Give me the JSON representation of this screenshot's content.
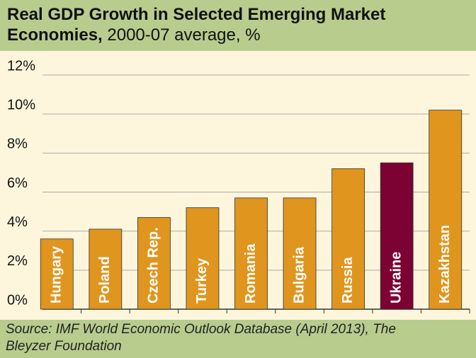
{
  "chart_data": {
    "type": "bar",
    "title": "Real GDP Growth in Selected Emerging Market Economies,",
    "subtitle": "2000-07 average, %",
    "source": "Source: IMF World Economic Outlook Database (April 2013), The Bleyzer Foundation",
    "categories": [
      "Hungary",
      "Poland",
      "Czech Rep.",
      "Turkey",
      "Romania",
      "Bulgaria",
      "Russia",
      "Ukraine",
      "Kazakhstan"
    ],
    "values": [
      3.6,
      4.1,
      4.7,
      5.2,
      5.7,
      5.7,
      7.2,
      7.5,
      10.2
    ],
    "colors": [
      "#e0951f",
      "#e0951f",
      "#e0951f",
      "#e0951f",
      "#e0951f",
      "#e0951f",
      "#e0951f",
      "#7b0232",
      "#e0951f"
    ],
    "ylim": [
      0,
      12
    ],
    "yticks": [
      {
        "value": 0,
        "label": "0%"
      },
      {
        "value": 2,
        "label": "2%"
      },
      {
        "value": 4,
        "label": "4%"
      },
      {
        "value": 6,
        "label": "6%"
      },
      {
        "value": 8,
        "label": "8%"
      },
      {
        "value": 10,
        "label": "10%"
      },
      {
        "value": 12,
        "label": "12%"
      }
    ],
    "grid": true
  }
}
